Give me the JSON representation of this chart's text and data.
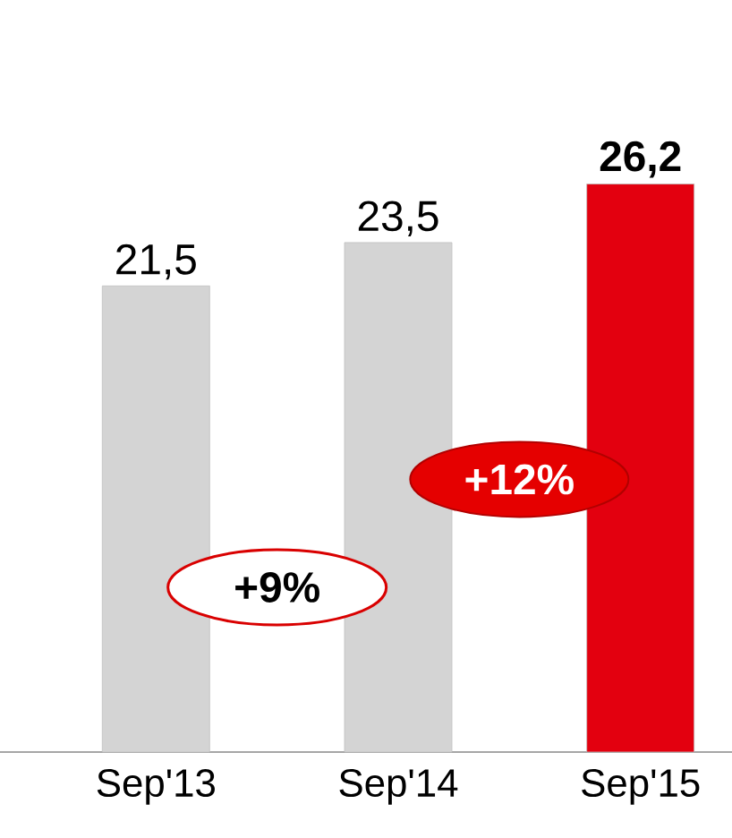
{
  "chart_data": {
    "type": "bar",
    "categories": [
      "Sep'13",
      "Sep'14",
      "Sep'15"
    ],
    "values": [
      21.5,
      23.5,
      26.2
    ],
    "colors": [
      "#d4d4d4",
      "#d4d4d4",
      "#e3000f"
    ],
    "value_labels": [
      "21,5",
      "23,5",
      "26,2"
    ],
    "annotations": [
      "+9%",
      "+12%"
    ]
  }
}
